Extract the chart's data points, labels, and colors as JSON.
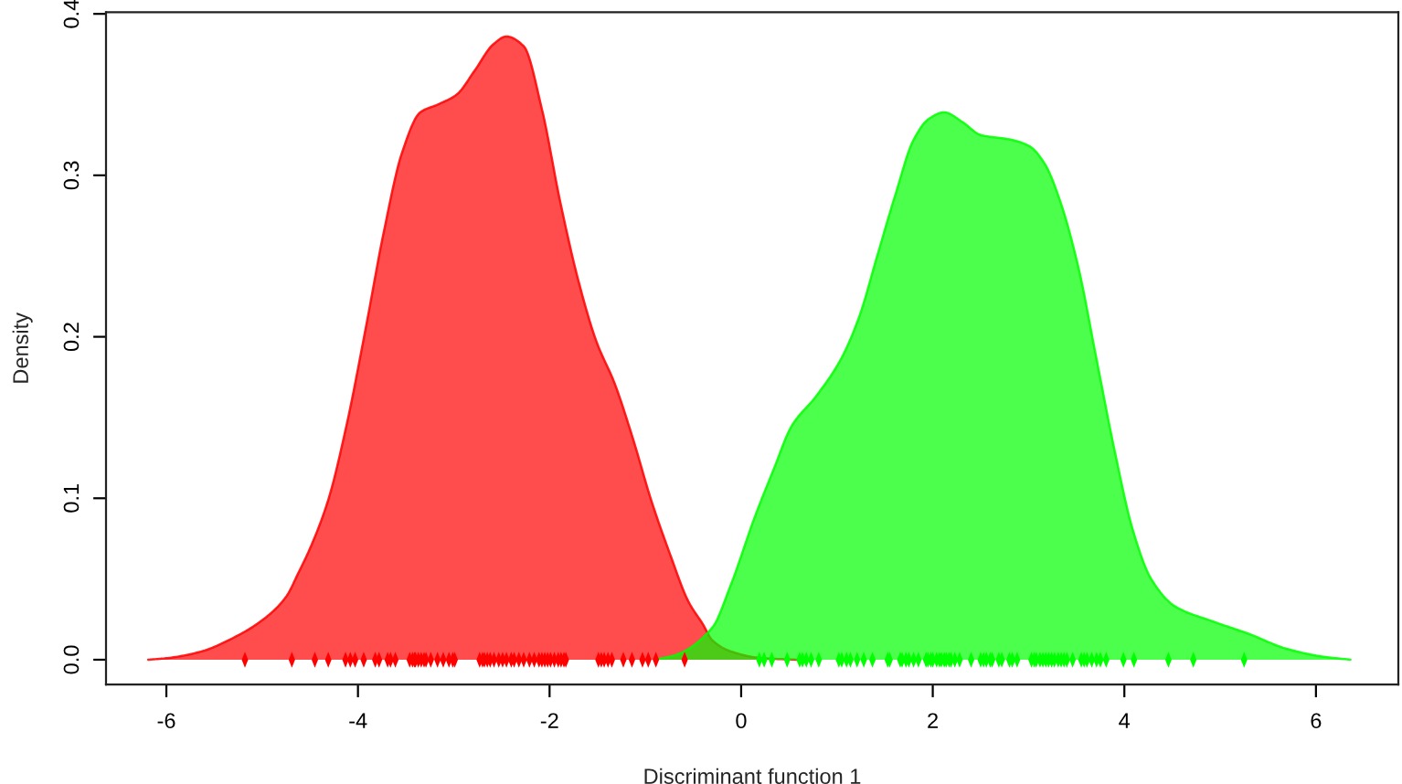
{
  "chart_data": {
    "type": "area",
    "xlabel": "Discriminant function 1",
    "ylabel": "Density",
    "xlim": [
      -6.63,
      6.86
    ],
    "ylim": [
      -0.0154,
      0.401
    ],
    "xticks": [
      -6,
      -4,
      -2,
      0,
      2,
      4,
      6
    ],
    "yticks": [
      {
        "value": 0,
        "label": "0.0"
      },
      {
        "value": 0.1,
        "label": "0.1"
      },
      {
        "value": 0.2,
        "label": "0.2"
      },
      {
        "value": 0.3,
        "label": "0.3"
      },
      {
        "value": 0.4,
        "label": "0.4"
      }
    ],
    "series": [
      {
        "color": "#ff4d4d",
        "x": [
          -6.19,
          -5.99,
          -5.64,
          -5.32,
          -5.01,
          -4.75,
          -4.62,
          -4.5,
          -4.31,
          -4.12,
          -3.92,
          -3.73,
          -3.54,
          -3.35,
          -3.16,
          -2.97,
          -2.78,
          -2.59,
          -2.45,
          -2.27,
          -2.08,
          -1.89,
          -1.7,
          -1.51,
          -1.32,
          -1.13,
          -0.94,
          -0.74,
          -0.55,
          -0.4,
          -0.3,
          -0.1,
          0.21,
          0.6
        ],
        "values": [
          0,
          0.001,
          0.005,
          0.013,
          0.024,
          0.039,
          0.054,
          0.069,
          0.099,
          0.145,
          0.205,
          0.265,
          0.314,
          0.339,
          0.344,
          0.35,
          0.365,
          0.381,
          0.386,
          0.38,
          0.341,
          0.284,
          0.235,
          0.197,
          0.171,
          0.137,
          0.099,
          0.065,
          0.036,
          0.022,
          0.012,
          0.005,
          0.001,
          0
        ]
      },
      {
        "color": "#4dff4d",
        "x": [
          -0.9,
          -0.68,
          -0.3,
          -0.11,
          0.14,
          0.34,
          0.53,
          0.78,
          1.04,
          1.23,
          1.42,
          1.61,
          1.8,
          1.96,
          2.12,
          2.31,
          2.5,
          2.82,
          3.01,
          3.17,
          3.33,
          3.52,
          3.71,
          3.9,
          4.09,
          4.28,
          4.53,
          4.91,
          5.3,
          5.68,
          6.06,
          6.36
        ],
        "values": [
          0,
          0.003,
          0.02,
          0.046,
          0.088,
          0.118,
          0.145,
          0.163,
          0.186,
          0.212,
          0.25,
          0.288,
          0.322,
          0.335,
          0.339,
          0.333,
          0.325,
          0.322,
          0.318,
          0.307,
          0.284,
          0.243,
          0.186,
          0.129,
          0.08,
          0.05,
          0.033,
          0.024,
          0.016,
          0.007,
          0.002,
          0
        ]
      },
      {
        "type": "scatter",
        "color": "#ff0000",
        "x": [
          -5.18,
          -4.69,
          -4.45,
          -4.31,
          -4.13,
          -4.08,
          -4.03,
          -3.94,
          -3.82,
          -3.78,
          -3.69,
          -3.66,
          -3.61,
          -3.46,
          -3.43,
          -3.41,
          -3.4,
          -3.37,
          -3.34,
          -3.31,
          -3.29,
          -3.24,
          -3.17,
          -3.11,
          -3.05,
          -3.01,
          -2.99,
          -2.73,
          -2.7,
          -2.68,
          -2.65,
          -2.62,
          -2.58,
          -2.53,
          -2.49,
          -2.45,
          -2.4,
          -2.37,
          -2.32,
          -2.27,
          -2.21,
          -2.16,
          -2.11,
          -2.08,
          -2.05,
          -2.02,
          -1.99,
          -1.95,
          -1.91,
          -1.88,
          -1.85,
          -1.83,
          -1.49,
          -1.46,
          -1.43,
          -1.39,
          -1.35,
          -1.23,
          -1.14,
          -1.03,
          -0.97,
          -0.89,
          -0.59
        ],
        "values": [
          0,
          0,
          0,
          0,
          0,
          0,
          0,
          0,
          0,
          0,
          0,
          0,
          0,
          0,
          0,
          0,
          0,
          0,
          0,
          0,
          0,
          0,
          0,
          0,
          0,
          0,
          0,
          0,
          0,
          0,
          0,
          0,
          0,
          0,
          0,
          0,
          0,
          0,
          0,
          0,
          0,
          0,
          0,
          0,
          0,
          0,
          0,
          0,
          0,
          0,
          0,
          0,
          0,
          0,
          0,
          0,
          0,
          0,
          0,
          0,
          0,
          0,
          0
        ]
      },
      {
        "type": "scatter",
        "color": "#00ff00",
        "x": [
          0.19,
          0.24,
          0.32,
          0.48,
          0.61,
          0.64,
          0.68,
          0.73,
          0.81,
          1.02,
          1.05,
          1.1,
          1.14,
          1.21,
          1.28,
          1.37,
          1.53,
          1.55,
          1.66,
          1.68,
          1.72,
          1.75,
          1.8,
          1.85,
          1.93,
          1.95,
          1.98,
          2.0,
          2.04,
          2.07,
          2.09,
          2.12,
          2.14,
          2.17,
          2.19,
          2.23,
          2.28,
          2.4,
          2.5,
          2.53,
          2.56,
          2.6,
          2.62,
          2.69,
          2.72,
          2.8,
          2.83,
          2.88,
          3.03,
          3.06,
          3.08,
          3.12,
          3.15,
          3.18,
          3.21,
          3.24,
          3.27,
          3.31,
          3.34,
          3.37,
          3.4,
          3.46,
          3.55,
          3.58,
          3.61,
          3.66,
          3.71,
          3.75,
          3.81,
          3.99,
          4.1,
          4.46,
          4.72,
          5.25
        ],
        "values": [
          0,
          0,
          0,
          0,
          0,
          0,
          0,
          0,
          0,
          0,
          0,
          0,
          0,
          0,
          0,
          0,
          0,
          0,
          0,
          0,
          0,
          0,
          0,
          0,
          0,
          0,
          0,
          0,
          0,
          0,
          0,
          0,
          0,
          0,
          0,
          0,
          0,
          0,
          0,
          0,
          0,
          0,
          0,
          0,
          0,
          0,
          0,
          0,
          0,
          0,
          0,
          0,
          0,
          0,
          0,
          0,
          0,
          0,
          0,
          0,
          0,
          0,
          0,
          0,
          0,
          0,
          0,
          0,
          0,
          0,
          0,
          0,
          0,
          0
        ]
      }
    ]
  }
}
